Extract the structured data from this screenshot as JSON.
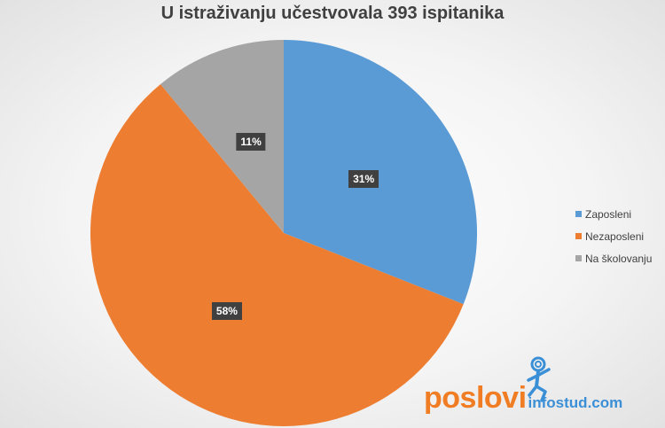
{
  "chart_data": {
    "type": "pie",
    "title": "U istraživanju učestvovala 393 ispitanika",
    "slices": [
      {
        "name": "Zaposleni",
        "value": 31,
        "label": "31%",
        "color": "#5b9bd5"
      },
      {
        "name": "Nezaposleni",
        "value": 58,
        "label": "58%",
        "color": "#ed7d31"
      },
      {
        "name": "Na školovanju",
        "value": 11,
        "label": "11%",
        "color": "#a5a5a5"
      }
    ],
    "start_angle": "12 o'clock",
    "direction": "clockwise",
    "legend_position": "right"
  },
  "branding": {
    "name": "poslovi",
    "domain": "infostud.com",
    "icon": "figure-logo-icon",
    "colors": {
      "name": "#f07d23",
      "domain": "#3a8fd6"
    }
  }
}
